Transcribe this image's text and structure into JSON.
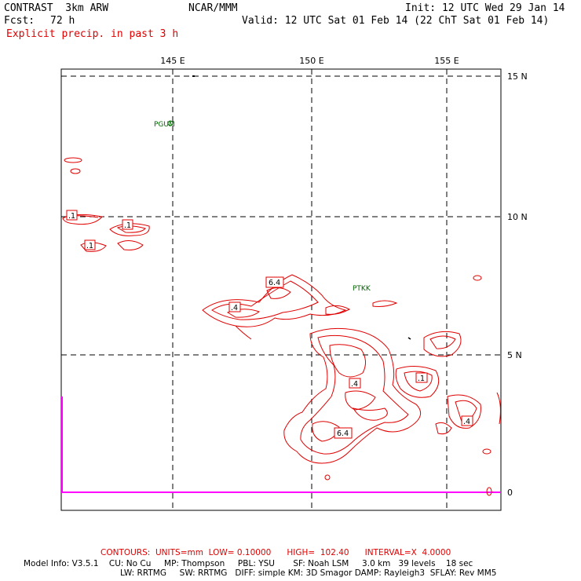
{
  "header": {
    "model": "CONTRAST  3km ARW",
    "org": "NCAR/MMM",
    "init": "Init: 12 UTC Wed 29 Jan 14",
    "fcst_label": "Fcst:",
    "fcst_value": "72 h",
    "valid": "Valid: 12 UTC Sat 01 Feb 14 (22 ChT Sat 01 Feb 14)",
    "field": "Explicit precip. in past 3 h"
  },
  "map": {
    "lon_labels": [
      "145 E",
      "150 E",
      "155 E"
    ],
    "lat_labels": [
      "15 N",
      "10 N",
      "5 N",
      "0"
    ],
    "stations": [
      "PGUM",
      "PTKK"
    ],
    "contour_labels": [
      ".1",
      ".1",
      ".1",
      "6.4",
      ".4",
      ".4",
      ".1",
      ".4",
      "6.4"
    ],
    "colors": {
      "precip": "#e00000",
      "grid": "#000000",
      "station": "#006400",
      "boundary": "#ff00ff"
    }
  },
  "footer": {
    "contours": "CONTOURS:  UNITS=mm  LOW= 0.10000      HIGH=  102.40      INTERVAL=X  4.0000",
    "model_info_1": "Model Info: V3.5.1    CU: No Cu     MP: Thompson     PBL: YSU       SF: Noah LSM     3.0 km   39 levels    18 sec",
    "model_info_2": "LW: RRTMG     SW: RRTMG   DIFF: simple KM: 3D Smagor DAMP: Rayleigh3  SFLAY: Rev MM5"
  }
}
